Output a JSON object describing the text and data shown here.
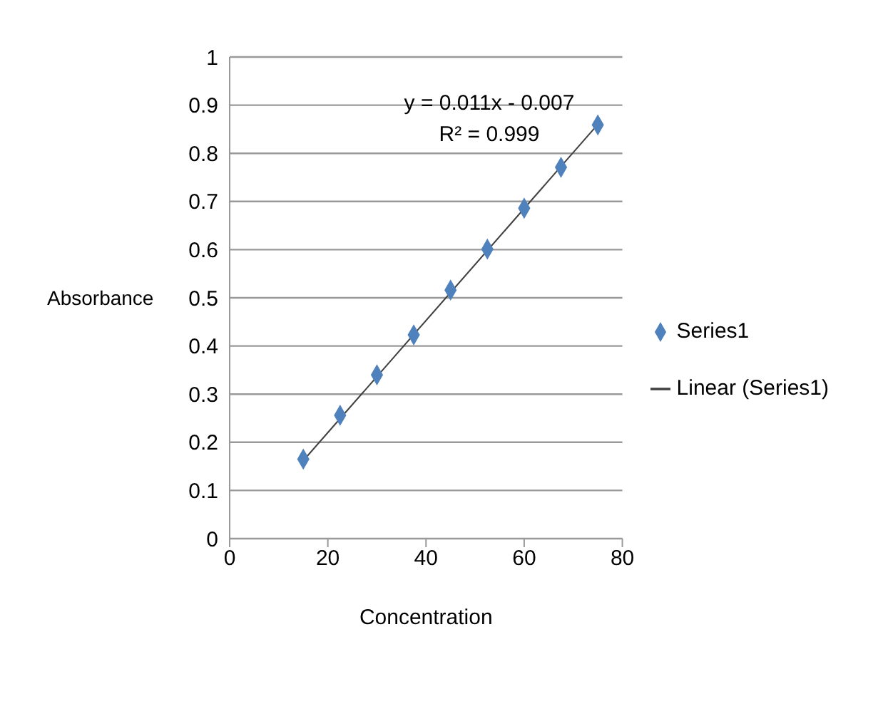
{
  "chart_data": {
    "type": "scatter",
    "xlabel": "Concentration",
    "ylabel": "Absorbance",
    "annotations": [
      "y = 0.011x - 0.007",
      "R² = 0.999"
    ],
    "x": [
      15,
      22.5,
      30,
      37.5,
      45,
      52.5,
      60,
      67.5,
      75
    ],
    "series": [
      {
        "name": "Series1",
        "color": "#4f81bd",
        "marker": "diamond",
        "values": [
          0.165,
          0.256,
          0.34,
          0.423,
          0.516,
          0.601,
          0.686,
          0.771,
          0.859
        ]
      },
      {
        "name": "Linear (Series1)",
        "type": "line",
        "color": "#404040",
        "marker": "none",
        "x": [
          15,
          75
        ],
        "values": [
          0.162,
          0.86
        ]
      }
    ],
    "xlim": [
      0,
      80
    ],
    "xticks": [
      0,
      20,
      40,
      60,
      80
    ],
    "ylim": [
      0,
      1
    ],
    "yticks": [
      0,
      0.1,
      0.2,
      0.3,
      0.4,
      0.5,
      0.6,
      0.7,
      0.8,
      0.9,
      1
    ],
    "grid": "y",
    "legend": "right"
  }
}
